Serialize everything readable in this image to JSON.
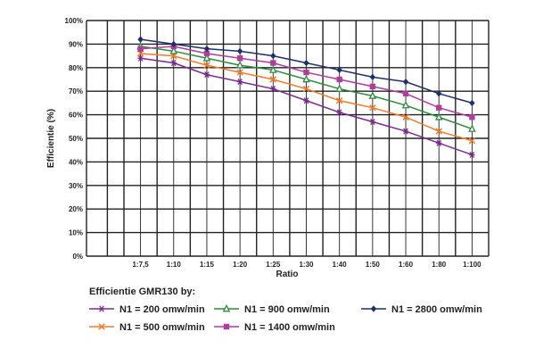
{
  "chart_data": {
    "type": "line",
    "ylabel": "Efficientie (%)",
    "xlabel": "Ratio",
    "categories": [
      "1:7,5",
      "1:10",
      "1:15",
      "1:20",
      "1:25",
      "1:30",
      "1:40",
      "1:50",
      "1:60",
      "1:80",
      "1:100"
    ],
    "yticks": [
      "0%",
      "10%",
      "20%",
      "30%",
      "40%",
      "50%",
      "60%",
      "70%",
      "80%",
      "90%",
      "100%"
    ],
    "ylim": [
      0,
      100
    ],
    "grid": true,
    "legend_title": "Efficientie GMR130 by:",
    "legend_position": "bottom",
    "series": [
      {
        "name": "N1 = 200 omw/min",
        "color": "#7b2a8f",
        "marker": "asterisk",
        "values": [
          84,
          82,
          77,
          74,
          71,
          66,
          61,
          57,
          53,
          48,
          43
        ]
      },
      {
        "name": "N1 = 500 omw/min",
        "color": "#f07b2a",
        "marker": "x",
        "values": [
          86,
          85,
          81,
          78,
          75,
          71,
          66,
          63,
          59,
          53,
          49
        ]
      },
      {
        "name": "N1 = 900 omw/min",
        "color": "#2e8b3e",
        "marker": "triangle",
        "values": [
          89,
          87,
          84,
          81,
          79,
          75,
          71,
          68,
          64,
          59,
          54
        ]
      },
      {
        "name": "N1 = 1400 omw/min",
        "color": "#b03c9c",
        "marker": "square",
        "values": [
          88,
          89,
          86,
          84,
          82,
          78,
          75,
          72,
          69,
          63,
          59
        ]
      },
      {
        "name": "N1 = 2800 omw/min",
        "color": "#1f2f6b",
        "marker": "diamond",
        "values": [
          92,
          90,
          88,
          87,
          85,
          82,
          79,
          76,
          74,
          69,
          65
        ]
      }
    ]
  }
}
